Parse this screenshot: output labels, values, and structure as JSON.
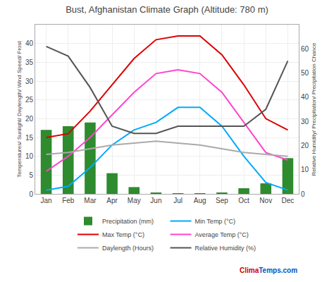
{
  "chart_data": {
    "type": "bar",
    "title": "Bust, Afghanistan Climate Graph (Altitude: 780 m)",
    "categories": [
      "Jan",
      "Feb",
      "Mar",
      "Apr",
      "May",
      "Jun",
      "Jul",
      "Aug",
      "Sep",
      "Oct",
      "Nov",
      "Dec"
    ],
    "series": [
      {
        "name": "Precipitation (mm)",
        "type": "bar",
        "color": "#2e8b2e",
        "values": [
          17,
          18,
          19,
          5.5,
          1.8,
          0.2,
          0.1,
          0.1,
          0.2,
          1.5,
          2.8,
          9.5
        ]
      },
      {
        "name": "Min Temp (°C)",
        "type": "line",
        "color": "#00aaff",
        "values": [
          1,
          2,
          7,
          13,
          17,
          19,
          23,
          23,
          18,
          10,
          3,
          1
        ]
      },
      {
        "name": "Max Temp (°C)",
        "type": "line",
        "color": "#dd0000",
        "values": [
          15,
          16,
          22,
          29,
          36,
          41,
          42,
          42,
          37,
          29,
          20,
          17
        ]
      },
      {
        "name": "Average Temp (°C)",
        "type": "line",
        "color": "#ff44cc",
        "values": [
          6,
          10,
          15,
          21,
          27,
          32,
          33,
          32,
          27,
          19,
          11,
          9
        ]
      },
      {
        "name": "Daylength (Hours)",
        "type": "line",
        "color": "#aaaaaa",
        "values": [
          10.5,
          11,
          12,
          13,
          13.5,
          14,
          13.5,
          13,
          12,
          11,
          10.5,
          10
        ]
      },
      {
        "name": "Relative Humidity (%)",
        "type": "line",
        "axis": "y2",
        "color": "#555555",
        "values": [
          61,
          57,
          44,
          28,
          25,
          25,
          28,
          28,
          28,
          28,
          35,
          55
        ]
      }
    ],
    "ylabel": "Temperatures/ Sunlight/ Daylength/ Wind Speed/ Frost",
    "y2label": "Relative Humidity/ Precipitation/ Precipitation Chance",
    "ylim": [
      0,
      45
    ],
    "yticks": [
      0,
      5,
      10,
      15,
      20,
      25,
      30,
      35,
      40
    ],
    "y2lim": [
      0,
      70
    ],
    "y2ticks": [
      0,
      10,
      20,
      30,
      40,
      50,
      60
    ],
    "grid": true,
    "legend": "bottom",
    "annotations": [
      {
        "text": "Clima",
        "color": "#cc0000"
      },
      {
        "text": "Temps.com",
        "color": "#0055bb"
      }
    ]
  }
}
